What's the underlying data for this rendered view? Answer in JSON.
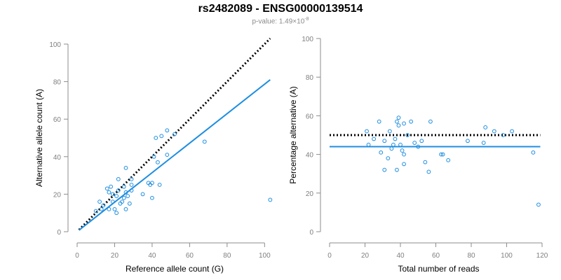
{
  "figure": {
    "title": "rs2482089 - ENSG00000139514",
    "subtitle_prefix": "p-value: 1.49×10",
    "subtitle_exponent": "-8"
  },
  "colors": {
    "point": "#1f8ee0",
    "fit_line": "#1f8ee0",
    "reference_line": "#000000",
    "axis": "#8c8c8c"
  },
  "chart_data": [
    {
      "type": "scatter",
      "xlabel": "Reference allele count (G)",
      "ylabel": "Alternative allele count (A)",
      "xlim": [
        0,
        104
      ],
      "ylim": [
        0,
        100
      ],
      "xticks": [
        0,
        20,
        40,
        60,
        80,
        100
      ],
      "yticks": [
        0,
        20,
        40,
        60,
        80,
        100
      ],
      "points": [
        [
          10,
          11
        ],
        [
          12,
          16
        ],
        [
          13,
          12
        ],
        [
          14,
          14
        ],
        [
          16,
          23
        ],
        [
          17,
          21
        ],
        [
          17,
          12
        ],
        [
          18,
          24
        ],
        [
          19,
          20
        ],
        [
          19,
          16
        ],
        [
          20,
          12
        ],
        [
          21,
          10
        ],
        [
          21,
          19
        ],
        [
          22,
          22
        ],
        [
          22,
          28
        ],
        [
          23,
          15
        ],
        [
          24,
          16
        ],
        [
          25,
          18
        ],
        [
          25,
          24
        ],
        [
          26,
          21
        ],
        [
          26,
          34
        ],
        [
          26,
          12
        ],
        [
          27,
          19
        ],
        [
          28,
          15
        ],
        [
          29,
          22
        ],
        [
          29,
          25
        ],
        [
          29,
          28
        ],
        [
          35,
          20
        ],
        [
          38,
          26
        ],
        [
          39,
          25
        ],
        [
          40,
          18
        ],
        [
          40,
          26
        ],
        [
          41,
          40
        ],
        [
          42,
          50
        ],
        [
          43,
          37
        ],
        [
          44,
          25
        ],
        [
          45,
          51
        ],
        [
          48,
          41
        ],
        [
          48,
          54
        ],
        [
          52,
          52
        ],
        [
          68,
          48
        ],
        [
          103,
          17
        ]
      ],
      "reference_line": {
        "style": "dotted",
        "from": [
          1,
          1
        ],
        "to": [
          103,
          103
        ]
      },
      "fit_line": {
        "style": "solid",
        "from": [
          1,
          0.8
        ],
        "to": [
          103,
          81
        ]
      }
    },
    {
      "type": "scatter",
      "xlabel": "Total number of reads",
      "ylabel": "Percentage alternative (A)",
      "xlim": [
        0,
        120
      ],
      "ylim": [
        0,
        100
      ],
      "xticks": [
        0,
        20,
        40,
        60,
        80,
        100,
        120
      ],
      "yticks": [
        0,
        20,
        40,
        60,
        80,
        100
      ],
      "points": [
        [
          21,
          52
        ],
        [
          22,
          45
        ],
        [
          25,
          48
        ],
        [
          28,
          57
        ],
        [
          29,
          41
        ],
        [
          31,
          32
        ],
        [
          31,
          47
        ],
        [
          33,
          38
        ],
        [
          34,
          52
        ],
        [
          35,
          43
        ],
        [
          36,
          45
        ],
        [
          37,
          48
        ],
        [
          38,
          32
        ],
        [
          38,
          57
        ],
        [
          39,
          59
        ],
        [
          39,
          55
        ],
        [
          40,
          45
        ],
        [
          41,
          42
        ],
        [
          42,
          40
        ],
        [
          42,
          56
        ],
        [
          42,
          35
        ],
        [
          44,
          50
        ],
        [
          46,
          57
        ],
        [
          48,
          46
        ],
        [
          50,
          44
        ],
        [
          52,
          47
        ],
        [
          54,
          36
        ],
        [
          56,
          31
        ],
        [
          57,
          57
        ],
        [
          63,
          40
        ],
        [
          64,
          40
        ],
        [
          67,
          37
        ],
        [
          78,
          47
        ],
        [
          87,
          46
        ],
        [
          88,
          54
        ],
        [
          93,
          52
        ],
        [
          98,
          50
        ],
        [
          103,
          52
        ],
        [
          115,
          41
        ],
        [
          118,
          14
        ]
      ],
      "reference_line": {
        "style": "dotted",
        "y": 50,
        "xrange": [
          0,
          119
        ]
      },
      "fit_line": {
        "style": "solid",
        "y": 44,
        "xrange": [
          0,
          119
        ]
      }
    }
  ]
}
